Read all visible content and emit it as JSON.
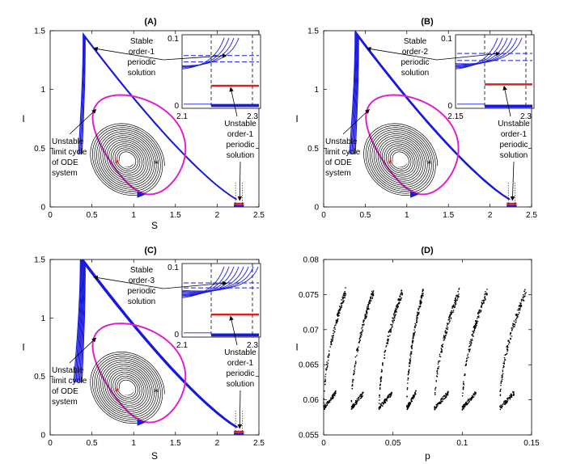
{
  "figure": {
    "panels_labels": [
      "(A)",
      "(B)",
      "(C)",
      "(D)"
    ]
  },
  "chart_data": [
    {
      "id": "A",
      "type": "line",
      "title": "(A)",
      "xlabel": "S",
      "ylabel": "I",
      "xlim": [
        0,
        2.5
      ],
      "ylim": [
        0,
        1.5
      ],
      "xticks": [
        "0",
        "0.5",
        "1",
        "1.5",
        "2",
        "2.5"
      ],
      "yticks": [
        "0",
        "0.5",
        "1",
        "1.5"
      ],
      "equilibrium_red": [
        0.8,
        0.37
      ],
      "equilibrium_black": [
        1.27,
        0.37
      ],
      "magenta_cycle": {
        "s_min": 0.5,
        "s_max": 1.63,
        "i_max": 0.93,
        "i_min": 0.13
      },
      "blue_orbits": {
        "count": 4,
        "s_min": 0.38,
        "peak_s": 0.42,
        "peak_i": 1.44,
        "right_s": 2.3
      },
      "inset": {
        "xticks": [
          "2.1",
          "2.3"
        ],
        "yticks": [
          "0",
          "0.1"
        ],
        "blue_dashed_levels": [
          0.075,
          0.066
        ],
        "red_level": 0.032,
        "blue_bottom_levels": [
          0.003,
          0.005
        ]
      },
      "annotations": {
        "stable": [
          "Stable",
          "order-1",
          "periodic",
          "solution"
        ],
        "unstable_ode": [
          "Unstable",
          "limit cycle",
          "of ODE",
          "system"
        ],
        "unstable_periodic": [
          "Unstable",
          "order-1",
          "periodic",
          "solution"
        ]
      }
    },
    {
      "id": "B",
      "type": "line",
      "title": "(B)",
      "xlabel": "",
      "ylabel": "I",
      "xlim": [
        0,
        2.5
      ],
      "ylim": [
        0,
        1.5
      ],
      "xticks": [
        "0",
        "0.5",
        "1",
        "1.5",
        "2",
        "2.5"
      ],
      "yticks": [
        "0",
        "0.5",
        "1",
        "1.5"
      ],
      "equilibrium_red": [
        0.8,
        0.37
      ],
      "equilibrium_black": [
        1.27,
        0.37
      ],
      "magenta_cycle": {
        "s_min": 0.5,
        "s_max": 1.63,
        "i_max": 0.93,
        "i_min": 0.13
      },
      "blue_orbits": {
        "count": 6,
        "s_min": 0.38,
        "peak_s": 0.42,
        "peak_i": 1.44,
        "right_s": 2.3
      },
      "inset": {
        "xticks": [
          "2.15",
          "2.3"
        ],
        "yticks": [
          "0",
          "0.1"
        ],
        "blue_dashed_levels": [
          0.078,
          0.068
        ],
        "red_level": 0.034,
        "blue_bottom_levels": [
          0.002,
          0.004
        ]
      },
      "annotations": {
        "stable": [
          "Stable",
          "order-2",
          "periodic",
          "solution"
        ],
        "unstable_ode": [
          "Unstable",
          "limit cycle",
          "of ODE",
          "system"
        ],
        "unstable_periodic": [
          "Unstable",
          "order-1",
          "periodic",
          "solution"
        ]
      }
    },
    {
      "id": "C",
      "type": "line",
      "title": "(C)",
      "xlabel": "S",
      "ylabel": "I",
      "xlim": [
        0,
        2.5
      ],
      "ylim": [
        0,
        1.5
      ],
      "xticks": [
        "0",
        "0.5",
        "1",
        "1.5",
        "2",
        "2.5"
      ],
      "yticks": [
        "0",
        "0.5",
        "1",
        "1.5"
      ],
      "equilibrium_red": [
        0.8,
        0.37
      ],
      "equilibrium_black": [
        1.27,
        0.37
      ],
      "magenta_cycle": {
        "s_min": 0.5,
        "s_max": 1.63,
        "i_max": 0.93,
        "i_min": 0.13
      },
      "blue_orbits": {
        "count": 8,
        "s_min": 0.38,
        "peak_s": 0.42,
        "peak_i": 1.45,
        "right_s": 2.3
      },
      "inset": {
        "xticks": [
          "2.1",
          "2.3"
        ],
        "yticks": [
          "0",
          "0.1"
        ],
        "blue_dashed_levels": [
          0.077,
          0.07
        ],
        "red_level": 0.032,
        "blue_bottom_levels": [
          0.002,
          0.004
        ]
      },
      "annotations": {
        "stable": [
          "Stable",
          "order-3",
          "periodic",
          "solution"
        ],
        "unstable_ode": [
          "Unstable",
          "limit cycle",
          "of ODE",
          "system"
        ],
        "unstable_periodic": [
          "Unstable",
          "order-1",
          "periodic",
          "solution"
        ]
      }
    },
    {
      "id": "D",
      "type": "scatter",
      "title": "(D)",
      "xlabel": "p",
      "ylabel": "I",
      "xlim": [
        0,
        0.15
      ],
      "ylim": [
        0.055,
        0.08
      ],
      "xticks": [
        "0",
        "0.05",
        "0.1",
        "0.15"
      ],
      "yticks": [
        "0.055",
        "0.06",
        "0.065",
        "0.07",
        "0.075",
        "0.08"
      ],
      "bands": [
        {
          "p_start": 0.0,
          "p_end": 0.016
        },
        {
          "p_start": 0.02,
          "p_end": 0.036
        },
        {
          "p_start": 0.04,
          "p_end": 0.057
        },
        {
          "p_start": 0.06,
          "p_end": 0.072
        },
        {
          "p_start": 0.08,
          "p_end": 0.098
        },
        {
          "p_start": 0.1,
          "p_end": 0.118
        },
        {
          "p_start": 0.127,
          "p_end": 0.146
        }
      ]
    }
  ]
}
